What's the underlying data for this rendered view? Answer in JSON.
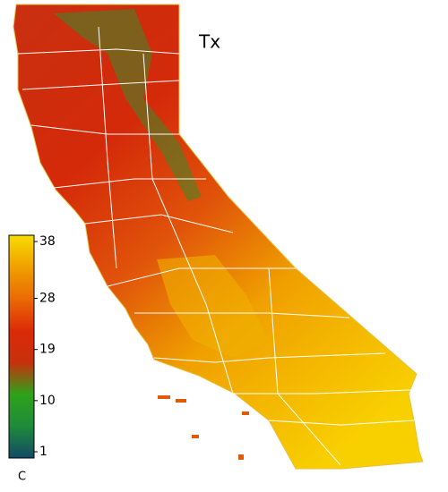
{
  "title": "Tx",
  "colorbar": {
    "lim": [
      1,
      38
    ],
    "ticks": [
      38,
      28,
      19,
      10,
      1
    ],
    "unit": "C",
    "colors": [
      "#124a66",
      "#1f8a3a",
      "#2fa21a",
      "#c8300c",
      "#dc2a08",
      "#ea6a04",
      "#f0a000",
      "#f8dc00"
    ]
  }
}
